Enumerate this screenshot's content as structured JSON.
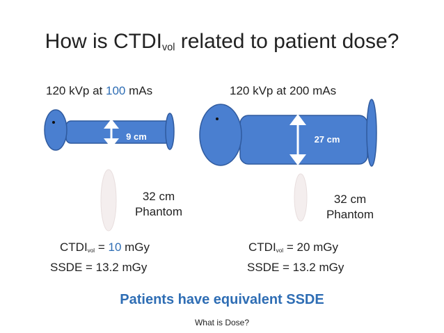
{
  "title": {
    "main": "How is CTDI",
    "sub": "vol",
    "rest": " related to patient dose?"
  },
  "left": {
    "config_prefix": "120 kVp at ",
    "config_mas": "100",
    "config_suffix": " mAs",
    "body_label": "9 cm",
    "phantom_line1": "32 cm",
    "phantom_line2": "Phantom",
    "ctdi_prefix": "CTDI",
    "ctdi_sub": "vol",
    "ctdi_eq": " = ",
    "ctdi_value": "10",
    "ctdi_unit": " mGy",
    "ssde": "SSDE = 13.2 mGy"
  },
  "right": {
    "config": "120 kVp at 200 mAs",
    "body_label": "27 cm",
    "phantom_line1": "32 cm",
    "phantom_line2": "Phantom",
    "ctdi_prefix": "CTDI",
    "ctdi_sub": "vol",
    "ctdi_value": " = 20 mGy",
    "ssde": "SSDE = 13.2 mGy"
  },
  "summary": "Patients have equivalent SSDE",
  "footer": "What is Dose?",
  "colors": {
    "shape_fill": "#4a7fd0",
    "shape_stroke": "#2f5a9e",
    "accent_text": "#2e6db4",
    "label_text": "#ffffff"
  }
}
